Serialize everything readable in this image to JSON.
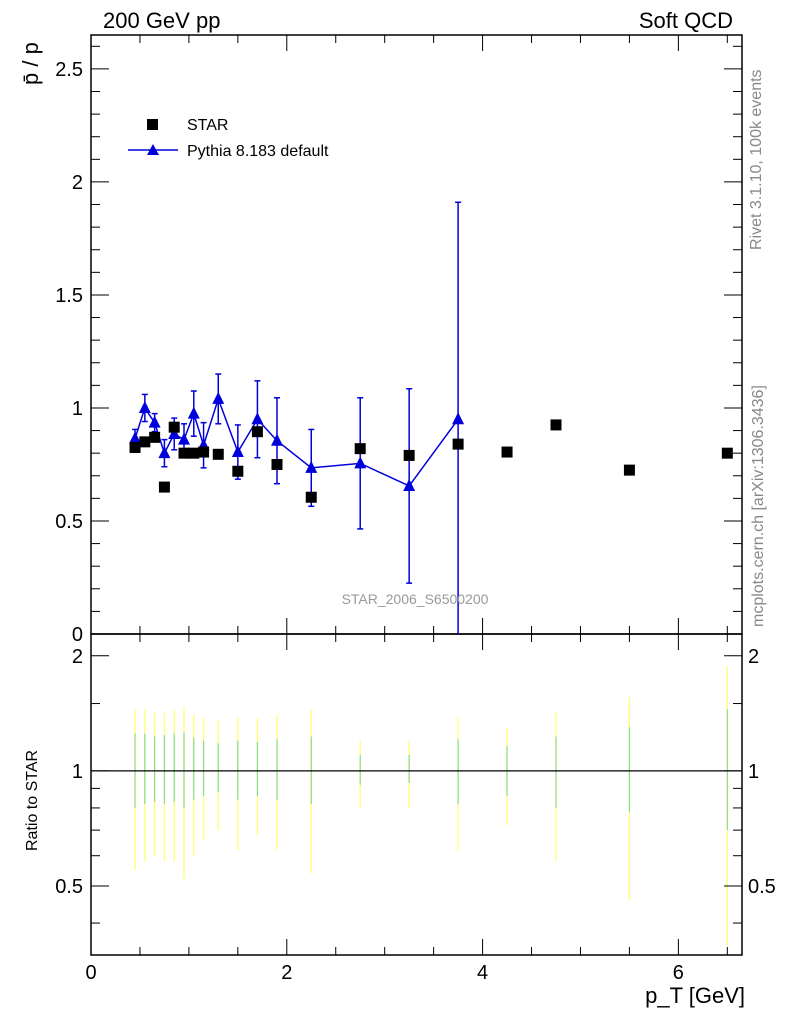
{
  "header": {
    "left": "200 GeV pp",
    "right": "Soft QCD"
  },
  "side_labels": {
    "rivet": "Rivet 3.1.10,  100k events",
    "mcplots": "mcplots.cern.ch [arXiv:1306.3436]"
  },
  "colors": {
    "star": "#000000",
    "pythia": "#0000dd",
    "band_outer": "#ffff66",
    "band_inner": "#88dd88",
    "ref_text": "#999999"
  },
  "chart_data": [
    {
      "type": "scatter",
      "title": "",
      "ylabel": "p̄ / p",
      "xlabel": "",
      "xlim": [
        0,
        6.65
      ],
      "ylim": [
        0,
        2.65
      ],
      "yticks": [
        0,
        0.5,
        1,
        1.5,
        2,
        2.5
      ],
      "ytick_labels": [
        "0",
        "0.5",
        "1",
        "1.5",
        "2",
        "2.5"
      ],
      "reference_label": "STAR_2006_S6500200",
      "legend": {
        "position": "top-left",
        "entries": [
          "STAR",
          "Pythia 8.183 default"
        ]
      },
      "series": [
        {
          "name": "STAR",
          "marker": "square",
          "x": [
            0.45,
            0.55,
            0.65,
            0.75,
            0.85,
            0.95,
            1.05,
            1.15,
            1.3,
            1.5,
            1.7,
            1.9,
            2.25,
            2.75,
            3.25,
            3.75,
            4.25,
            4.75,
            5.5,
            6.5
          ],
          "y": [
            0.825,
            0.85,
            0.87,
            0.65,
            0.915,
            0.8,
            0.8,
            0.805,
            0.795,
            0.72,
            0.895,
            0.75,
            0.605,
            0.82,
            0.79,
            0.84,
            0.805,
            0.925,
            0.725,
            0.8
          ]
        },
        {
          "name": "Pythia 8.183 default",
          "marker": "triangle",
          "line": true,
          "x": [
            0.45,
            0.55,
            0.65,
            0.75,
            0.85,
            0.95,
            1.05,
            1.15,
            1.3,
            1.5,
            1.7,
            1.9,
            2.25,
            2.75,
            3.25,
            3.75
          ],
          "y": [
            0.865,
            1.0,
            0.935,
            0.8,
            0.885,
            0.86,
            0.975,
            0.835,
            1.04,
            0.805,
            0.95,
            0.855,
            0.735,
            0.755,
            0.655,
            0.95
          ],
          "err": [
            0.04,
            0.06,
            0.04,
            0.06,
            0.07,
            0.07,
            0.1,
            0.1,
            0.11,
            0.12,
            0.17,
            0.19,
            0.17,
            0.29,
            0.43,
            0.96
          ]
        }
      ]
    },
    {
      "type": "band",
      "title": "",
      "ylabel": "Ratio to STAR",
      "xlabel": "p_T [GeV]",
      "xlim": [
        0,
        6.65
      ],
      "ylim": [
        0.33,
        2.28
      ],
      "yticks": [
        0.5,
        1,
        2
      ],
      "ytick_labels": [
        "0.5",
        "1",
        "2"
      ],
      "xticks": [
        0,
        2,
        4,
        6
      ],
      "xtick_labels": [
        "0",
        "2",
        "4",
        "6"
      ],
      "reference_line": 1,
      "series": [
        {
          "name": "STAR uncertainty",
          "x": [
            0.45,
            0.55,
            0.65,
            0.75,
            0.85,
            0.95,
            1.05,
            1.15,
            1.3,
            1.5,
            1.7,
            1.9,
            2.25,
            2.75,
            3.25,
            3.75,
            4.25,
            4.75,
            5.5,
            6.5
          ],
          "outer_lo": [
            0.55,
            0.58,
            0.6,
            0.58,
            0.58,
            0.52,
            0.6,
            0.66,
            0.7,
            0.62,
            0.68,
            0.62,
            0.54,
            0.8,
            0.8,
            0.62,
            0.72,
            0.58,
            0.46,
            0.35
          ],
          "outer_hi": [
            1.45,
            1.45,
            1.42,
            1.42,
            1.44,
            1.47,
            1.4,
            1.38,
            1.36,
            1.38,
            1.37,
            1.4,
            1.44,
            1.2,
            1.2,
            1.38,
            1.3,
            1.42,
            1.56,
            1.88
          ],
          "inner_lo": [
            0.8,
            0.82,
            0.83,
            0.82,
            0.83,
            0.8,
            0.84,
            0.86,
            0.88,
            0.84,
            0.86,
            0.84,
            0.82,
            0.92,
            0.93,
            0.82,
            0.86,
            0.8,
            0.78,
            0.7
          ],
          "inner_hi": [
            1.25,
            1.25,
            1.23,
            1.24,
            1.25,
            1.26,
            1.22,
            1.2,
            1.18,
            1.2,
            1.19,
            1.21,
            1.23,
            1.1,
            1.1,
            1.21,
            1.16,
            1.23,
            1.3,
            1.45
          ]
        }
      ]
    }
  ]
}
